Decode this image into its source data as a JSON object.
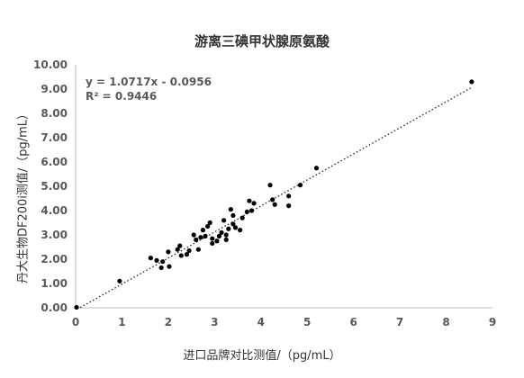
{
  "chart_data": {
    "type": "scatter",
    "title": "游离三碘甲状腺原氨酸",
    "xlabel": "进口品牌对比测值/（pg/mL）",
    "ylabel": "丹大生物DF200i测值/（pg/mL）",
    "xlim": [
      0,
      9
    ],
    "ylim": [
      0,
      10
    ],
    "x_ticks": [
      "0",
      "1",
      "2",
      "3",
      "4",
      "5",
      "6",
      "7",
      "8",
      "9"
    ],
    "y_ticks": [
      "0.00",
      "1.00",
      "2.00",
      "3.00",
      "4.00",
      "5.00",
      "6.00",
      "7.00",
      "8.00",
      "9.00",
      "10.00"
    ],
    "grid": false,
    "trendline": {
      "equation": "y = 1.0717x - 0.0956",
      "r_squared": "R² = 0.9446",
      "slope": 1.0717,
      "intercept": -0.0956,
      "style": "dotted"
    },
    "points": [
      [
        0.02,
        0.02
      ],
      [
        0.95,
        1.1
      ],
      [
        1.62,
        2.05
      ],
      [
        1.75,
        1.95
      ],
      [
        1.85,
        1.65
      ],
      [
        1.88,
        1.9
      ],
      [
        2.0,
        2.3
      ],
      [
        2.02,
        1.7
      ],
      [
        2.2,
        2.4
      ],
      [
        2.25,
        2.55
      ],
      [
        2.28,
        2.15
      ],
      [
        2.4,
        2.2
      ],
      [
        2.45,
        2.35
      ],
      [
        2.55,
        3.0
      ],
      [
        2.6,
        2.8
      ],
      [
        2.65,
        2.4
      ],
      [
        2.7,
        2.9
      ],
      [
        2.75,
        3.2
      ],
      [
        2.8,
        2.95
      ],
      [
        2.85,
        3.35
      ],
      [
        2.9,
        3.5
      ],
      [
        2.95,
        2.85
      ],
      [
        2.95,
        2.65
      ],
      [
        3.05,
        2.75
      ],
      [
        3.1,
        2.95
      ],
      [
        3.15,
        3.1
      ],
      [
        3.2,
        3.6
      ],
      [
        3.25,
        3.0
      ],
      [
        3.25,
        2.8
      ],
      [
        3.3,
        3.25
      ],
      [
        3.35,
        4.05
      ],
      [
        3.4,
        3.45
      ],
      [
        3.4,
        3.8
      ],
      [
        3.45,
        3.3
      ],
      [
        3.55,
        3.2
      ],
      [
        3.6,
        3.7
      ],
      [
        3.7,
        3.95
      ],
      [
        3.75,
        4.4
      ],
      [
        3.8,
        4.0
      ],
      [
        3.85,
        4.3
      ],
      [
        4.2,
        5.05
      ],
      [
        4.25,
        4.45
      ],
      [
        4.3,
        4.25
      ],
      [
        4.6,
        4.6
      ],
      [
        4.6,
        4.2
      ],
      [
        4.85,
        5.05
      ],
      [
        5.2,
        5.75
      ],
      [
        8.55,
        9.3
      ]
    ]
  }
}
